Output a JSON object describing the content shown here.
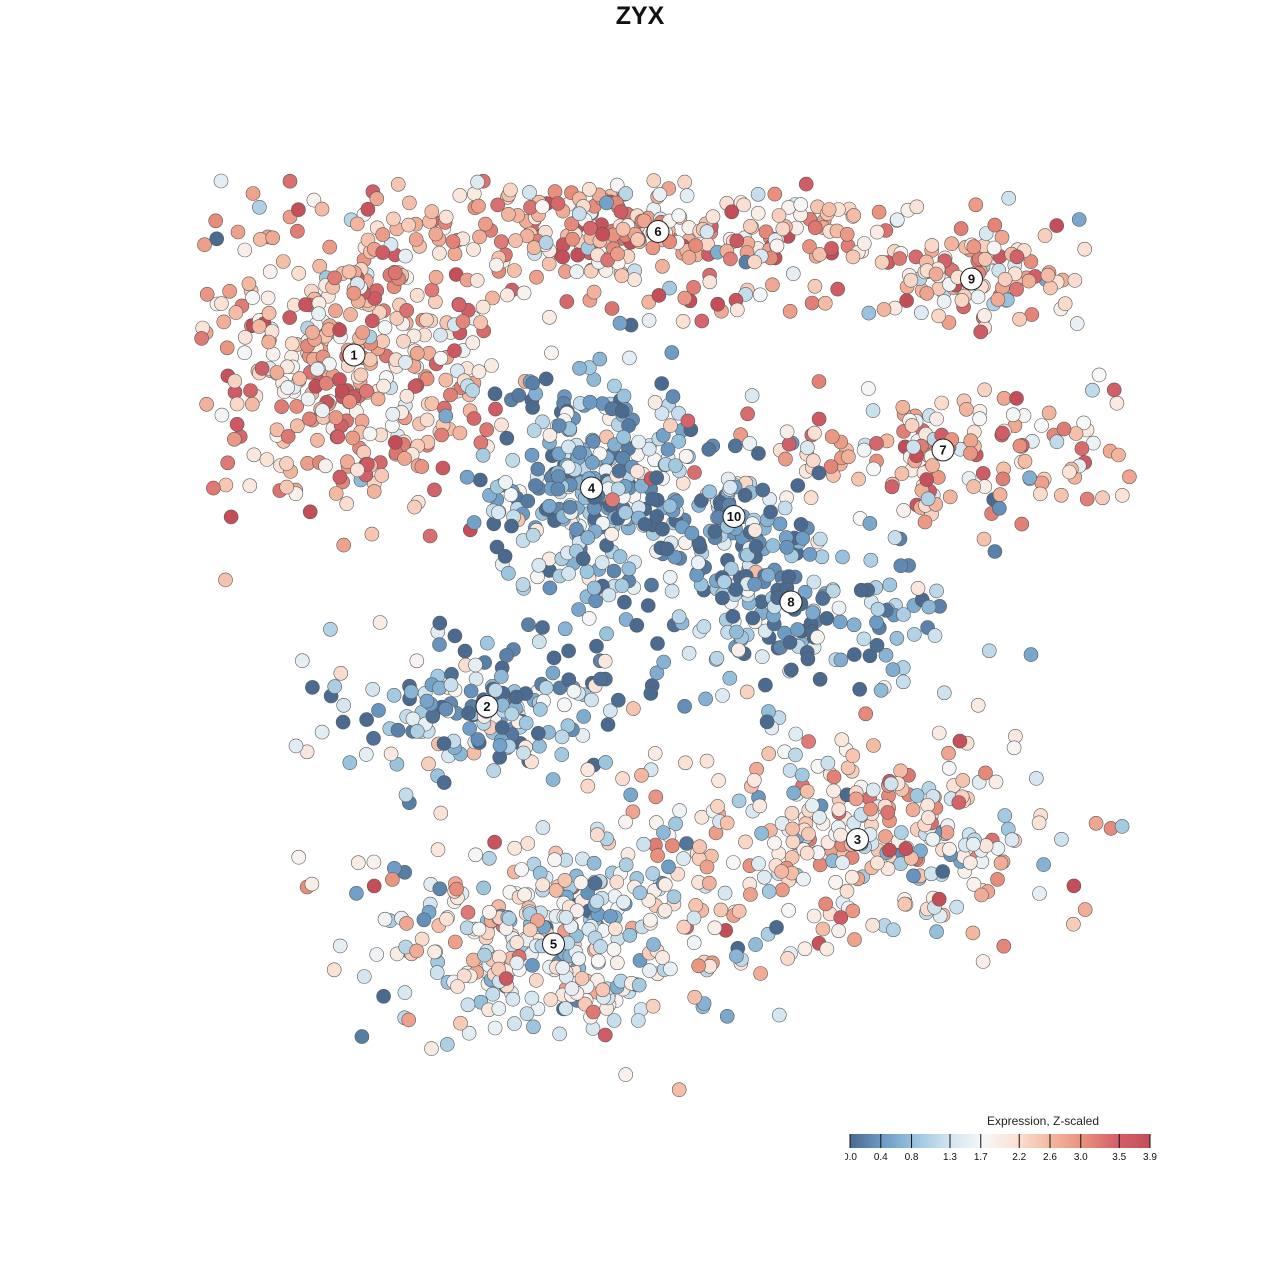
{
  "chart_data": {
    "type": "scatter",
    "title": "ZYX",
    "xlabel": "",
    "ylabel": "",
    "grid": false,
    "legend": {
      "title": "Expression, Z-scaled",
      "placement": "bottom-right",
      "ticks": [
        "0.0",
        "0.4",
        "0.8",
        "1.3",
        "1.7",
        "2.2",
        "2.6",
        "3.0",
        "3.5",
        "3.9"
      ],
      "range": [
        0.0,
        3.9
      ],
      "colors": [
        "#4a6a90",
        "#6c9cc6",
        "#9cc6df",
        "#d3e5f0",
        "#f7f7f7",
        "#fbe1d4",
        "#f4b8a0",
        "#e8907c",
        "#d36169",
        "#c44e57"
      ]
    },
    "clusters": [
      {
        "label": "1",
        "x": -2.8,
        "y": 3.0,
        "mean_expression": 2.6
      },
      {
        "label": "2",
        "x": -1.4,
        "y": -0.7,
        "mean_expression": 0.7
      },
      {
        "label": "3",
        "x": 2.5,
        "y": -2.1,
        "mean_expression": 2.1
      },
      {
        "label": "4",
        "x": -0.3,
        "y": 1.6,
        "mean_expression": 0.7
      },
      {
        "label": "5",
        "x": -0.7,
        "y": -3.2,
        "mean_expression": 1.6
      },
      {
        "label": "6",
        "x": 0.4,
        "y": 4.3,
        "mean_expression": 2.5
      },
      {
        "label": "7",
        "x": 3.4,
        "y": 2.0,
        "mean_expression": 2.5
      },
      {
        "label": "8",
        "x": 1.8,
        "y": 0.4,
        "mean_expression": 0.6
      },
      {
        "label": "9",
        "x": 3.7,
        "y": 3.8,
        "mean_expression": 2.4
      },
      {
        "label": "10",
        "x": 1.2,
        "y": 1.3,
        "mean_expression": 0.6
      }
    ]
  }
}
